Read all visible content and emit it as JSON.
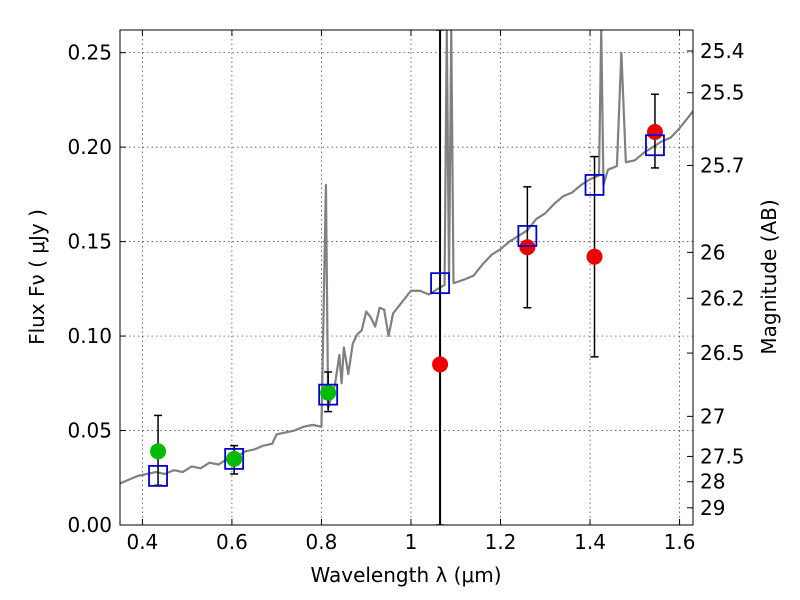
{
  "chart_data": {
    "type": "scatter",
    "title": "",
    "xlabel": "Wavelength  λ (μm)",
    "ylabel": "Flux  Fν  ( μJy )",
    "ylabel_right": "Magnitude (AB)",
    "xlim": [
      0.35,
      1.63
    ],
    "ylim": [
      0.0,
      0.262
    ],
    "grid": true,
    "x_ticks": [
      0.4,
      0.6,
      0.8,
      1.0,
      1.2,
      1.4,
      1.6
    ],
    "x_tick_labels": [
      "0.4",
      "0.6",
      "0.8",
      "1",
      "1.2",
      "1.4",
      "1.6"
    ],
    "y_ticks": [
      0.0,
      0.05,
      0.1,
      0.15,
      0.2,
      0.25
    ],
    "y_tick_labels": [
      "0.00",
      "0.05",
      "0.10",
      "0.15",
      "0.20",
      "0.25"
    ],
    "right_ticks": [
      {
        "label": "25.4",
        "flux": 0.2509
      },
      {
        "label": "25.5",
        "flux": 0.2288
      },
      {
        "label": "25.7",
        "flux": 0.1903
      },
      {
        "label": "26",
        "flux": 0.1443
      },
      {
        "label": "26.2",
        "flux": 0.12
      },
      {
        "label": "26.5",
        "flux": 0.091
      },
      {
        "label": "27",
        "flux": 0.0575
      },
      {
        "label": "27.5",
        "flux": 0.0363
      },
      {
        "label": "28",
        "flux": 0.0229
      },
      {
        "label": "29",
        "flux": 0.0091
      }
    ],
    "vertical_line_x": 1.065,
    "series": [
      {
        "kind": "line",
        "color": "#808080",
        "points": [
          [
            0.35,
            0.022
          ],
          [
            0.37,
            0.024
          ],
          [
            0.39,
            0.026
          ],
          [
            0.41,
            0.027
          ],
          [
            0.43,
            0.028
          ],
          [
            0.45,
            0.027
          ],
          [
            0.47,
            0.029
          ],
          [
            0.49,
            0.028
          ],
          [
            0.51,
            0.031
          ],
          [
            0.53,
            0.03
          ],
          [
            0.55,
            0.033
          ],
          [
            0.57,
            0.032
          ],
          [
            0.59,
            0.035
          ],
          [
            0.61,
            0.036
          ],
          [
            0.63,
            0.039
          ],
          [
            0.65,
            0.04
          ],
          [
            0.67,
            0.042
          ],
          [
            0.69,
            0.043
          ],
          [
            0.7,
            0.048
          ],
          [
            0.72,
            0.049
          ],
          [
            0.74,
            0.05
          ],
          [
            0.76,
            0.052
          ],
          [
            0.78,
            0.053
          ],
          [
            0.8,
            0.052
          ],
          [
            0.81,
            0.18
          ],
          [
            0.815,
            0.062
          ],
          [
            0.83,
            0.074
          ],
          [
            0.84,
            0.09
          ],
          [
            0.845,
            0.075
          ],
          [
            0.85,
            0.094
          ],
          [
            0.86,
            0.08
          ],
          [
            0.87,
            0.096
          ],
          [
            0.88,
            0.101
          ],
          [
            0.89,
            0.103
          ],
          [
            0.9,
            0.113
          ],
          [
            0.91,
            0.11
          ],
          [
            0.92,
            0.105
          ],
          [
            0.93,
            0.115
          ],
          [
            0.94,
            0.114
          ],
          [
            0.95,
            0.1
          ],
          [
            0.96,
            0.112
          ],
          [
            0.98,
            0.118
          ],
          [
            1.0,
            0.124
          ],
          [
            1.02,
            0.124
          ],
          [
            1.04,
            0.122
          ],
          [
            1.06,
            0.125
          ],
          [
            1.075,
            0.127
          ],
          [
            1.08,
            0.262
          ],
          [
            1.085,
            0.13
          ],
          [
            1.09,
            0.262
          ],
          [
            1.095,
            0.128
          ],
          [
            1.12,
            0.13
          ],
          [
            1.14,
            0.132
          ],
          [
            1.16,
            0.138
          ],
          [
            1.18,
            0.143
          ],
          [
            1.2,
            0.146
          ],
          [
            1.22,
            0.15
          ],
          [
            1.24,
            0.153
          ],
          [
            1.26,
            0.156
          ],
          [
            1.28,
            0.162
          ],
          [
            1.3,
            0.165
          ],
          [
            1.32,
            0.17
          ],
          [
            1.34,
            0.174
          ],
          [
            1.36,
            0.176
          ],
          [
            1.38,
            0.18
          ],
          [
            1.4,
            0.183
          ],
          [
            1.42,
            0.185
          ],
          [
            1.425,
            0.262
          ],
          [
            1.43,
            0.18
          ],
          [
            1.44,
            0.188
          ],
          [
            1.46,
            0.19
          ],
          [
            1.47,
            0.25
          ],
          [
            1.48,
            0.192
          ],
          [
            1.5,
            0.193
          ],
          [
            1.52,
            0.197
          ],
          [
            1.54,
            0.2
          ],
          [
            1.56,
            0.203
          ],
          [
            1.58,
            0.205
          ],
          [
            1.6,
            0.21
          ],
          [
            1.62,
            0.216
          ],
          [
            1.63,
            0.219
          ]
        ]
      },
      {
        "kind": "errorbar",
        "color": "#000000",
        "bars": [
          {
            "x": 0.435,
            "low": 0.021,
            "high": 0.058
          },
          {
            "x": 0.605,
            "low": 0.027,
            "high": 0.042
          },
          {
            "x": 0.815,
            "low": 0.06,
            "high": 0.081
          },
          {
            "x": 1.065,
            "low": 0.0,
            "high": 0.262
          },
          {
            "x": 1.26,
            "low": 0.115,
            "high": 0.179
          },
          {
            "x": 1.41,
            "low": 0.089,
            "high": 0.195
          },
          {
            "x": 1.545,
            "low": 0.189,
            "high": 0.228
          }
        ]
      },
      {
        "kind": "markers",
        "marker": "circle",
        "color": "#00bb00",
        "points": [
          [
            0.435,
            0.039
          ],
          [
            0.605,
            0.035
          ],
          [
            0.815,
            0.07
          ]
        ]
      },
      {
        "kind": "markers",
        "marker": "circle",
        "color": "#ee0000",
        "points": [
          [
            1.065,
            0.085
          ],
          [
            1.26,
            0.147
          ],
          [
            1.41,
            0.142
          ],
          [
            1.545,
            0.208
          ]
        ]
      },
      {
        "kind": "markers",
        "marker": "square",
        "color": "#0000cc",
        "points": [
          [
            0.435,
            0.026
          ],
          [
            0.605,
            0.035
          ],
          [
            0.815,
            0.069
          ],
          [
            1.065,
            0.128
          ],
          [
            1.26,
            0.153
          ],
          [
            1.41,
            0.18
          ],
          [
            1.545,
            0.201
          ]
        ]
      }
    ]
  }
}
